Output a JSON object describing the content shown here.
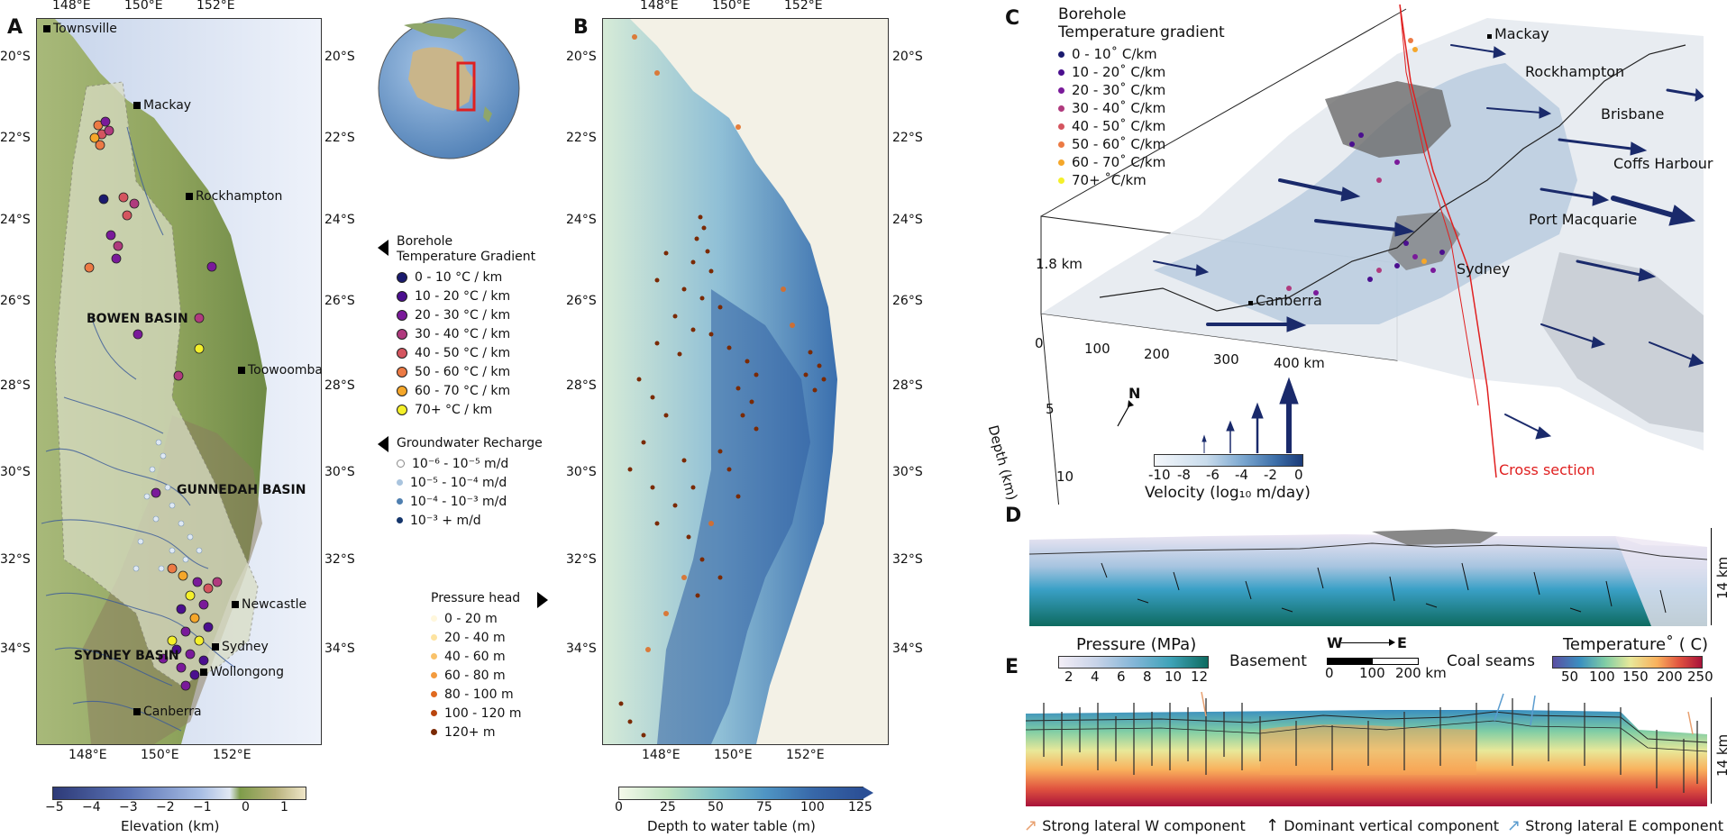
{
  "panels": {
    "a": "A",
    "b": "B",
    "c": "C",
    "d": "D",
    "e": "E"
  },
  "panelA": {
    "lon_ticks": [
      "148°E",
      "150°E",
      "152°E"
    ],
    "lat_ticks": [
      "20°S",
      "22°S",
      "24°S",
      "26°S",
      "28°S",
      "30°S",
      "32°S",
      "34°S"
    ],
    "cities": [
      "Townsville",
      "Mackay",
      "Rockhampton",
      "Toowoomba",
      "Newcastle",
      "Sydney",
      "Wollongong",
      "Canberra"
    ],
    "basins": [
      "BOWEN BASIN",
      "GUNNEDAH BASIN",
      "SYDNEY BASIN"
    ],
    "colorbar": {
      "label": "Elevation (km)",
      "ticks": [
        "−5",
        "−4",
        "−3",
        "−2",
        "−1",
        "0",
        "1"
      ]
    }
  },
  "legend_temp": {
    "title1": "Borehole",
    "title2": "Temperature Gradient",
    "items": [
      {
        "label": "0 - 10  °C / km",
        "color": "#1a1a6e"
      },
      {
        "label": "10 - 20  °C / km",
        "color": "#4b0f8f"
      },
      {
        "label": "20 - 30  °C / km",
        "color": "#7a1a9a"
      },
      {
        "label": "30 - 40  °C / km",
        "color": "#b03a7e"
      },
      {
        "label": "40 - 50  °C / km",
        "color": "#d4555f"
      },
      {
        "label": "50 - 60  °C / km",
        "color": "#ec7a44"
      },
      {
        "label": "60 - 70  °C / km",
        "color": "#f5a72a"
      },
      {
        "label": "70+  °C / km",
        "color": "#f4f02a"
      }
    ]
  },
  "legend_recharge": {
    "title": "Groundwater Recharge",
    "items": [
      {
        "label": "10⁻⁶ - 10⁻⁵ m/d",
        "color": "#ffffff"
      },
      {
        "label": "10⁻⁵ - 10⁻⁴ m/d",
        "color": "#a9c4de"
      },
      {
        "label": "10⁻⁴ - 10⁻³ m/d",
        "color": "#4f7fb0"
      },
      {
        "label": "10⁻³ + m/d",
        "color": "#14356b"
      }
    ]
  },
  "legend_pressure": {
    "title": "Pressure head",
    "items": [
      {
        "label": "0 - 20 m",
        "color": "#fff7dc"
      },
      {
        "label": "20 - 40 m",
        "color": "#fde3a0"
      },
      {
        "label": "40 - 60 m",
        "color": "#f9c26a"
      },
      {
        "label": "60 - 80 m",
        "color": "#f39b3f"
      },
      {
        "label": "80 - 100 m",
        "color": "#e06a1f"
      },
      {
        "label": "100 - 120 m",
        "color": "#b9450e"
      },
      {
        "label": "120+ m",
        "color": "#7a2a05"
      }
    ]
  },
  "panelB": {
    "lon_ticks": [
      "148°E",
      "150°E",
      "152°E"
    ],
    "lat_ticks": [
      "20°S",
      "22°S",
      "24°S",
      "26°S",
      "28°S",
      "30°S",
      "32°S",
      "34°S"
    ],
    "colorbar": {
      "label": "Depth to water table (m)",
      "ticks": [
        "0",
        "25",
        "50",
        "75",
        "100",
        "125"
      ]
    }
  },
  "panelC": {
    "legend_title1": "Borehole",
    "legend_title2": "Temperature gradient",
    "legend_items": [
      {
        "label": "0 - 10˚ C/km",
        "color": "#1a1a6e"
      },
      {
        "label": "10 - 20˚ C/km",
        "color": "#4b0f8f"
      },
      {
        "label": "20 - 30˚ C/km",
        "color": "#7a1a9a"
      },
      {
        "label": "30 - 40˚ C/km",
        "color": "#b03a7e"
      },
      {
        "label": "40 - 50˚ C/km",
        "color": "#d4555f"
      },
      {
        "label": "50 - 60˚ C/km",
        "color": "#ec7a44"
      },
      {
        "label": "60 - 70˚ C/km",
        "color": "#f5a72a"
      },
      {
        "label": "70+ ˚C/km",
        "color": "#f4f02a"
      }
    ],
    "cities": [
      "Mackay",
      "Rockhampton",
      "Brisbane",
      "Coffs Harbour",
      "Port Macquarie",
      "Sydney",
      "Canberra"
    ],
    "vertical_scale": "1.8 km",
    "x_ticks": [
      "0",
      "100",
      "200",
      "300",
      "400 km"
    ],
    "depth_label": "Depth (km)",
    "depth_ticks": [
      "5",
      "10"
    ],
    "north": "N",
    "velocity_label": "Velocity (log₁₀ m/day)",
    "velocity_ticks": [
      "-10",
      "-8",
      "-6",
      "-4",
      "-2",
      "0"
    ],
    "cross_section": "Cross section"
  },
  "panelD": {
    "scale": "14 km"
  },
  "panelE": {
    "scale": "14 km",
    "pressure_label": "Pressure (MPa)",
    "pressure_ticks": [
      "2",
      "4",
      "6",
      "8",
      "10",
      "12"
    ],
    "direction_w": "W",
    "direction_e": "E",
    "dist_ticks": [
      "0",
      "100",
      "200 km"
    ],
    "temperature_label": "Temperature˚ ( C)",
    "temperature_ticks": [
      "50",
      "100",
      "150",
      "200",
      "250"
    ],
    "basement": "Basement",
    "coal": "Coal seams",
    "arrow_legend": [
      {
        "label": "Strong lateral W component",
        "color": "#e8a070"
      },
      {
        "label": "Dominant vertical component",
        "color": "#111111"
      },
      {
        "label": "Strong lateral E component",
        "color": "#5a9ccf"
      }
    ]
  }
}
